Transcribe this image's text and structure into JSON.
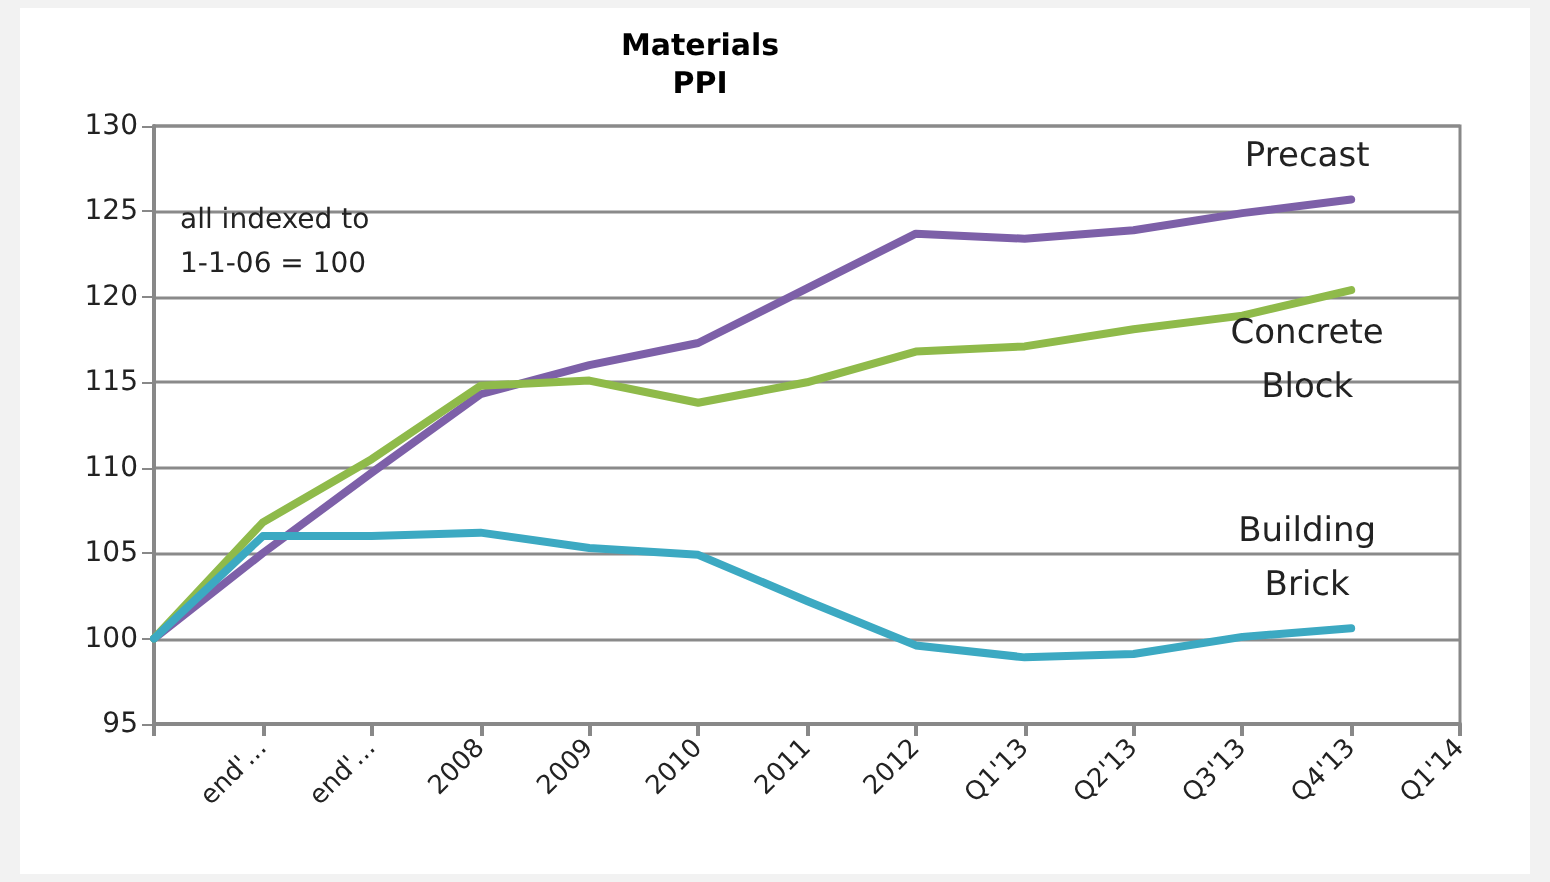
{
  "chart_data": {
    "type": "line",
    "title": "Materials",
    "subtitle": "PPI",
    "categories": [
      null,
      "end'...",
      "end'...",
      "2008",
      "2009",
      "2010",
      "2011",
      "2012",
      "Q1'13",
      "Q2'13",
      "Q3'13",
      "Q4'13",
      "Q1'14"
    ],
    "series": [
      {
        "name": "Precast",
        "color": "#7d60a8",
        "values": [
          100,
          105,
          109.7,
          114.3,
          116,
          117.3,
          120.5,
          123.7,
          123.4,
          123.9,
          124.9,
          125.7,
          null
        ]
      },
      {
        "name": "Concrete Block",
        "color": "#8fba4a",
        "values": [
          100,
          106.8,
          110.5,
          114.8,
          115.1,
          113.8,
          115,
          116.8,
          117.1,
          118.1,
          118.9,
          120.4,
          null
        ]
      },
      {
        "name": "Building Brick",
        "color": "#3ca9c2",
        "values": [
          100,
          106,
          106,
          106.2,
          105.3,
          104.9,
          102.2,
          99.6,
          98.9,
          99.1,
          100.1,
          100.6,
          null
        ]
      }
    ],
    "ylim": [
      95,
      130
    ],
    "yticks": [
      95,
      100,
      105,
      110,
      115,
      120,
      125,
      130
    ],
    "annotations": [
      "all indexed to\n1-1-06 = 100"
    ],
    "grid": "y",
    "legend": false,
    "marker": "none",
    "line_style": "solid"
  }
}
